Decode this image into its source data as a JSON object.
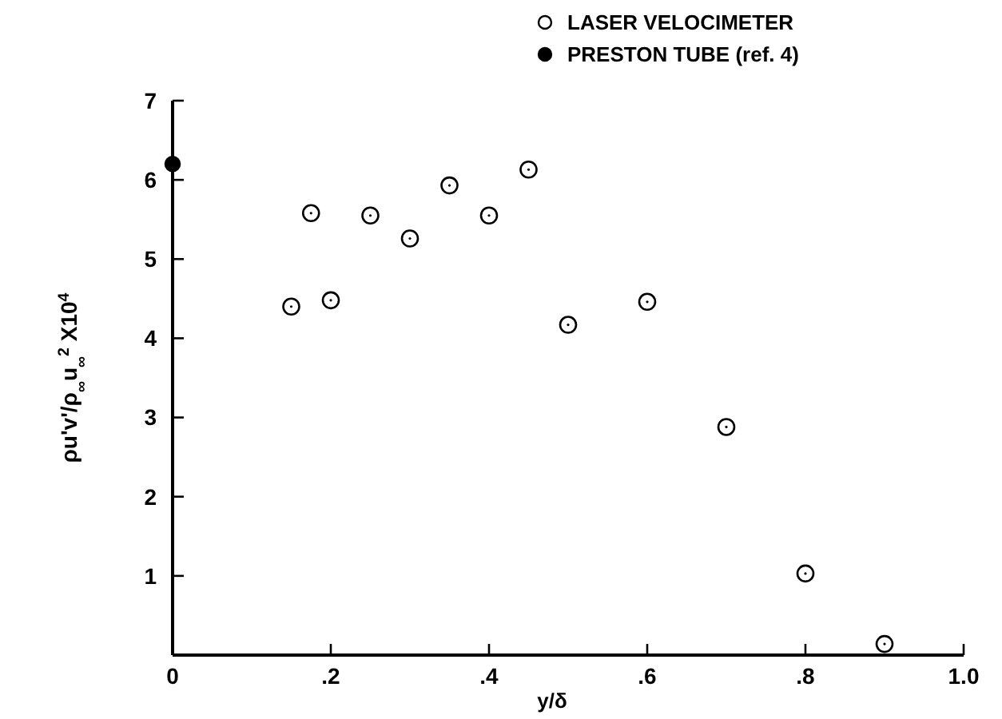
{
  "chart_data": {
    "type": "scatter",
    "xlabel": "y/δ",
    "ylabel": "ρu'v'/ρ$_{∞}$u$_{∞}$$^{2}$ X10$^{4}$",
    "xlim": [
      0,
      1
    ],
    "ylim": [
      0,
      7
    ],
    "xticks": [
      {
        "value": 0,
        "label": "0"
      },
      {
        "value": 0.2,
        "label": ".2"
      },
      {
        "value": 0.4,
        "label": ".4"
      },
      {
        "value": 0.6,
        "label": ".6"
      },
      {
        "value": 0.8,
        "label": ".8"
      },
      {
        "value": 1,
        "label": "1.0"
      }
    ],
    "yticks": [
      1,
      2,
      3,
      4,
      5,
      6,
      7
    ],
    "legend": "top right",
    "marker": "circle",
    "grid": false,
    "series": [
      {
        "name": "LASER VELOCIMETER",
        "color": "#000000",
        "x": [
          0.15,
          0.175,
          0.2,
          0.25,
          0.3,
          0.35,
          0.4,
          0.45,
          0.5,
          0.6,
          0.7,
          0.8,
          0.9
        ],
        "values": [
          4.4,
          5.58,
          4.48,
          5.55,
          5.26,
          5.93,
          5.55,
          6.13,
          4.17,
          4.46,
          2.88,
          1.03,
          0.14
        ]
      },
      {
        "name": "PRESTON TUBE (ref. 4)",
        "color": "#000000",
        "x": [
          0
        ],
        "values": [
          6.2
        ]
      }
    ]
  }
}
